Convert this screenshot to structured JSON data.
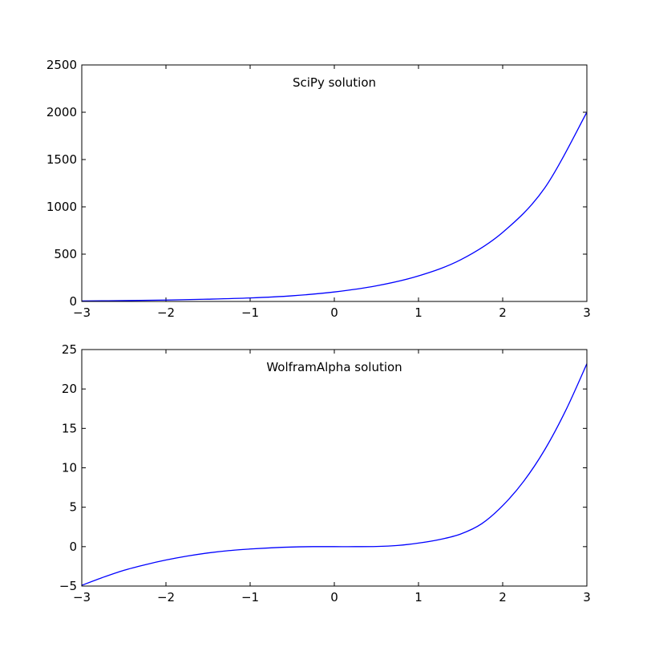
{
  "chart_data": [
    {
      "type": "line",
      "title": "SciPy solution",
      "xlabel": "",
      "ylabel": "",
      "xlim": [
        -3,
        3
      ],
      "ylim": [
        0,
        2500
      ],
      "xticks": [
        -3,
        -2,
        -1,
        0,
        1,
        2,
        3
      ],
      "yticks": [
        0,
        500,
        1000,
        1500,
        2000,
        2500
      ],
      "xtick_labels": [
        "−3",
        "−2",
        "−1",
        "0",
        "1",
        "2",
        "3"
      ],
      "ytick_labels": [
        "0",
        "500",
        "1000",
        "1500",
        "2000",
        "2500"
      ],
      "grid": false,
      "color": "#0000ff",
      "series": [
        {
          "x": [
            -3,
            -2.5,
            -2,
            -1.5,
            -1,
            -0.5,
            0,
            0.5,
            1,
            1.5,
            2,
            2.5,
            3
          ],
          "values": [
            5,
            9,
            15,
            24,
            37,
            60,
            100,
            165,
            270,
            440,
            730,
            1200,
            2000
          ]
        }
      ]
    },
    {
      "type": "line",
      "title": "WolframAlpha solution",
      "xlabel": "",
      "ylabel": "",
      "xlim": [
        -3,
        3
      ],
      "ylim": [
        -5,
        25
      ],
      "xticks": [
        -3,
        -2,
        -1,
        0,
        1,
        2,
        3
      ],
      "yticks": [
        -5,
        0,
        5,
        10,
        15,
        20,
        25
      ],
      "xtick_labels": [
        "−3",
        "−2",
        "−1",
        "0",
        "1",
        "2",
        "3"
      ],
      "ytick_labels": [
        "−5",
        "0",
        "5",
        "10",
        "15",
        "20",
        "25"
      ],
      "grid": false,
      "color": "#0000ff",
      "series": [
        {
          "x": [
            -3,
            -2.75,
            -2.5,
            -2.25,
            -2,
            -1.75,
            -1.5,
            -1.25,
            -1,
            -0.75,
            -0.5,
            -0.25,
            0,
            0.25,
            0.5,
            0.75,
            1,
            1.25,
            1.5,
            1.75,
            2,
            2.25,
            2.5,
            2.75,
            3
          ],
          "values": [
            -4.9,
            -3.9,
            -3.0,
            -2.3,
            -1.7,
            -1.2,
            -0.8,
            -0.5,
            -0.3,
            -0.15,
            -0.05,
            0,
            0,
            0,
            0.02,
            0.15,
            0.45,
            0.9,
            1.6,
            2.9,
            5.2,
            8.3,
            12.3,
            17.3,
            23.2
          ]
        }
      ]
    }
  ]
}
